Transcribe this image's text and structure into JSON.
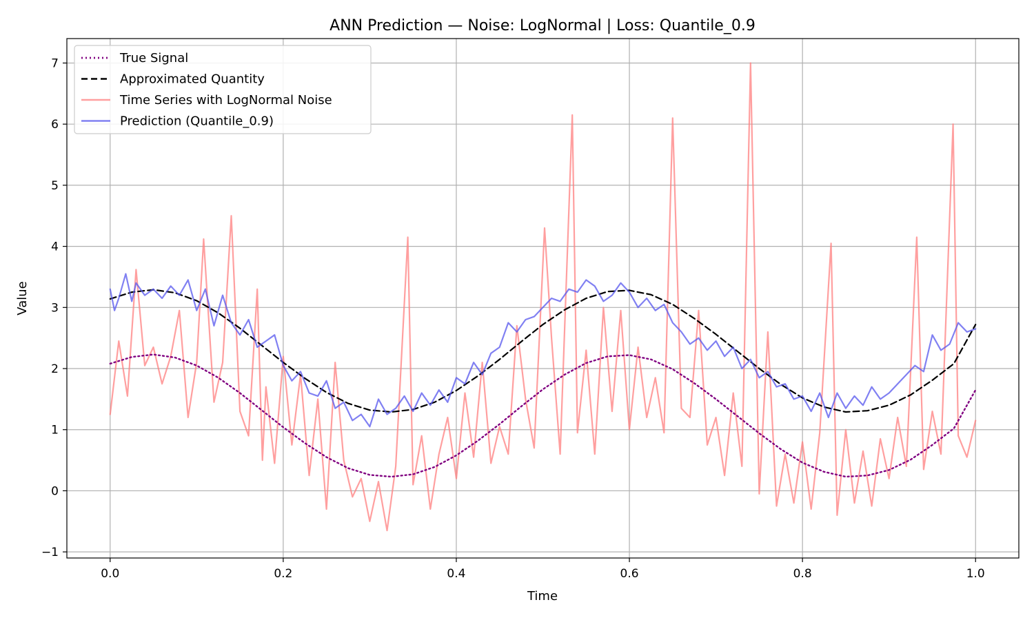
{
  "chart_data": {
    "type": "line",
    "title": "ANN Prediction — Noise: LogNormal | Loss: Quantile_0.9",
    "xlabel": "Time",
    "ylabel": "Value",
    "xlim": [
      -0.05,
      1.05
    ],
    "ylim": [
      -1.1,
      7.4
    ],
    "xticks": [
      0.0,
      0.2,
      0.4,
      0.6,
      0.8,
      1.0
    ],
    "xtick_labels": [
      "0.0",
      "0.2",
      "0.4",
      "0.6",
      "0.8",
      "1.0"
    ],
    "yticks": [
      -1,
      0,
      1,
      2,
      3,
      4,
      5,
      6,
      7
    ],
    "ytick_labels": [
      "−1",
      "0",
      "1",
      "2",
      "3",
      "4",
      "5",
      "6",
      "7"
    ],
    "grid": true,
    "legend_position": "top-left",
    "series": [
      {
        "name": "True Signal",
        "color": "#800080",
        "style": "dotted",
        "x": [
          0.0,
          0.025,
          0.05,
          0.075,
          0.1,
          0.125,
          0.15,
          0.175,
          0.2,
          0.225,
          0.25,
          0.275,
          0.3,
          0.325,
          0.35,
          0.375,
          0.4,
          0.425,
          0.45,
          0.475,
          0.5,
          0.525,
          0.55,
          0.575,
          0.6,
          0.625,
          0.65,
          0.675,
          0.7,
          0.725,
          0.75,
          0.775,
          0.8,
          0.825,
          0.85,
          0.875,
          0.9,
          0.925,
          0.95,
          0.975,
          1.0
        ],
        "y": [
          2.08,
          2.19,
          2.23,
          2.18,
          2.05,
          1.85,
          1.6,
          1.32,
          1.04,
          0.78,
          0.55,
          0.37,
          0.26,
          0.23,
          0.27,
          0.39,
          0.58,
          0.82,
          1.09,
          1.38,
          1.66,
          1.9,
          2.09,
          2.2,
          2.22,
          2.15,
          1.99,
          1.76,
          1.5,
          1.22,
          0.94,
          0.68,
          0.46,
          0.31,
          0.23,
          0.25,
          0.34,
          0.51,
          0.75,
          1.02,
          1.65
        ]
      },
      {
        "name": "Approximated Quantity",
        "color": "#000000",
        "style": "dashed",
        "x": [
          0.0,
          0.025,
          0.05,
          0.075,
          0.1,
          0.125,
          0.15,
          0.175,
          0.2,
          0.225,
          0.25,
          0.275,
          0.3,
          0.325,
          0.35,
          0.375,
          0.4,
          0.425,
          0.45,
          0.475,
          0.5,
          0.525,
          0.55,
          0.575,
          0.6,
          0.625,
          0.65,
          0.675,
          0.7,
          0.725,
          0.75,
          0.775,
          0.8,
          0.825,
          0.85,
          0.875,
          0.9,
          0.925,
          0.95,
          0.975,
          1.0
        ],
        "y": [
          3.14,
          3.25,
          3.29,
          3.24,
          3.11,
          2.91,
          2.66,
          2.38,
          2.1,
          1.84,
          1.61,
          1.43,
          1.32,
          1.29,
          1.33,
          1.45,
          1.64,
          1.88,
          2.15,
          2.44,
          2.72,
          2.96,
          3.15,
          3.26,
          3.28,
          3.21,
          3.05,
          2.82,
          2.56,
          2.28,
          2.0,
          1.74,
          1.52,
          1.37,
          1.29,
          1.31,
          1.4,
          1.57,
          1.81,
          2.08,
          2.72
        ]
      },
      {
        "name": "Time Series with LogNormal Noise",
        "color": "#ff7f7f",
        "style": "solid",
        "x": [
          0.0,
          0.01,
          0.02,
          0.03,
          0.04,
          0.05,
          0.06,
          0.07,
          0.08,
          0.09,
          0.1,
          0.108,
          0.12,
          0.13,
          0.14,
          0.15,
          0.16,
          0.17,
          0.176,
          0.18,
          0.19,
          0.2,
          0.21,
          0.22,
          0.23,
          0.24,
          0.25,
          0.26,
          0.27,
          0.28,
          0.29,
          0.3,
          0.31,
          0.32,
          0.33,
          0.344,
          0.35,
          0.36,
          0.37,
          0.38,
          0.39,
          0.4,
          0.41,
          0.42,
          0.43,
          0.44,
          0.45,
          0.46,
          0.47,
          0.48,
          0.49,
          0.502,
          0.51,
          0.52,
          0.534,
          0.54,
          0.55,
          0.56,
          0.57,
          0.58,
          0.59,
          0.6,
          0.61,
          0.62,
          0.63,
          0.64,
          0.65,
          0.66,
          0.67,
          0.68,
          0.69,
          0.7,
          0.71,
          0.72,
          0.73,
          0.74,
          0.75,
          0.76,
          0.77,
          0.78,
          0.79,
          0.8,
          0.81,
          0.82,
          0.833,
          0.84,
          0.85,
          0.86,
          0.87,
          0.88,
          0.89,
          0.9,
          0.91,
          0.92,
          0.932,
          0.94,
          0.95,
          0.96,
          0.974,
          0.98,
          0.99,
          1.0
        ],
        "y": [
          1.25,
          2.45,
          1.55,
          3.62,
          2.05,
          2.35,
          1.75,
          2.2,
          2.95,
          1.2,
          2.1,
          4.12,
          1.45,
          2.1,
          4.5,
          1.3,
          0.9,
          3.3,
          0.5,
          1.7,
          0.45,
          2.2,
          0.75,
          1.9,
          0.25,
          1.5,
          -0.3,
          2.1,
          0.5,
          -0.1,
          0.2,
          -0.5,
          0.15,
          -0.65,
          0.4,
          4.15,
          0.1,
          0.9,
          -0.3,
          0.6,
          1.2,
          0.2,
          1.6,
          0.55,
          2.1,
          0.45,
          1.05,
          0.6,
          2.7,
          1.5,
          0.7,
          4.3,
          2.5,
          0.6,
          6.15,
          0.95,
          2.3,
          0.6,
          3.0,
          1.3,
          2.95,
          1.0,
          2.35,
          1.2,
          1.85,
          0.95,
          6.1,
          1.35,
          1.2,
          2.95,
          0.75,
          1.2,
          0.25,
          1.6,
          0.4,
          7.0,
          -0.05,
          2.6,
          -0.25,
          0.6,
          -0.2,
          0.8,
          -0.3,
          0.95,
          4.05,
          -0.4,
          1.0,
          -0.2,
          0.65,
          -0.25,
          0.85,
          0.2,
          1.2,
          0.4,
          4.15,
          0.35,
          1.3,
          0.6,
          6.0,
          0.9,
          0.55,
          1.15
        ]
      },
      {
        "name": "Prediction (Quantile_0.9)",
        "color": "#5555ee",
        "style": "solid",
        "x": [
          0.0,
          0.005,
          0.01,
          0.018,
          0.025,
          0.03,
          0.04,
          0.05,
          0.06,
          0.07,
          0.08,
          0.09,
          0.1,
          0.11,
          0.12,
          0.13,
          0.14,
          0.15,
          0.16,
          0.17,
          0.18,
          0.19,
          0.2,
          0.21,
          0.22,
          0.23,
          0.24,
          0.25,
          0.26,
          0.27,
          0.28,
          0.29,
          0.3,
          0.31,
          0.32,
          0.33,
          0.34,
          0.35,
          0.36,
          0.37,
          0.38,
          0.39,
          0.4,
          0.41,
          0.42,
          0.43,
          0.44,
          0.45,
          0.46,
          0.47,
          0.48,
          0.49,
          0.5,
          0.51,
          0.52,
          0.53,
          0.54,
          0.55,
          0.56,
          0.57,
          0.58,
          0.59,
          0.6,
          0.61,
          0.62,
          0.63,
          0.64,
          0.65,
          0.66,
          0.67,
          0.68,
          0.69,
          0.7,
          0.71,
          0.72,
          0.73,
          0.74,
          0.75,
          0.76,
          0.77,
          0.78,
          0.79,
          0.8,
          0.81,
          0.82,
          0.83,
          0.84,
          0.85,
          0.86,
          0.87,
          0.88,
          0.89,
          0.9,
          0.91,
          0.92,
          0.93,
          0.94,
          0.95,
          0.96,
          0.97,
          0.98,
          0.99,
          1.0
        ],
        "y": [
          3.3,
          2.95,
          3.15,
          3.55,
          3.1,
          3.4,
          3.2,
          3.3,
          3.15,
          3.35,
          3.2,
          3.45,
          2.95,
          3.3,
          2.7,
          3.2,
          2.75,
          2.55,
          2.8,
          2.35,
          2.45,
          2.55,
          2.05,
          1.8,
          1.95,
          1.6,
          1.55,
          1.8,
          1.35,
          1.45,
          1.15,
          1.25,
          1.05,
          1.5,
          1.25,
          1.35,
          1.55,
          1.3,
          1.6,
          1.4,
          1.65,
          1.45,
          1.85,
          1.75,
          2.1,
          1.9,
          2.25,
          2.35,
          2.75,
          2.6,
          2.8,
          2.85,
          3.0,
          3.15,
          3.1,
          3.3,
          3.25,
          3.45,
          3.35,
          3.1,
          3.2,
          3.4,
          3.25,
          3.0,
          3.15,
          2.95,
          3.05,
          2.75,
          2.6,
          2.4,
          2.5,
          2.3,
          2.45,
          2.2,
          2.35,
          2.0,
          2.15,
          1.85,
          1.95,
          1.7,
          1.75,
          1.5,
          1.55,
          1.3,
          1.6,
          1.2,
          1.6,
          1.35,
          1.55,
          1.4,
          1.7,
          1.5,
          1.6,
          1.75,
          1.9,
          2.05,
          1.95,
          2.55,
          2.3,
          2.4,
          2.75,
          2.6,
          2.65
        ]
      }
    ]
  }
}
